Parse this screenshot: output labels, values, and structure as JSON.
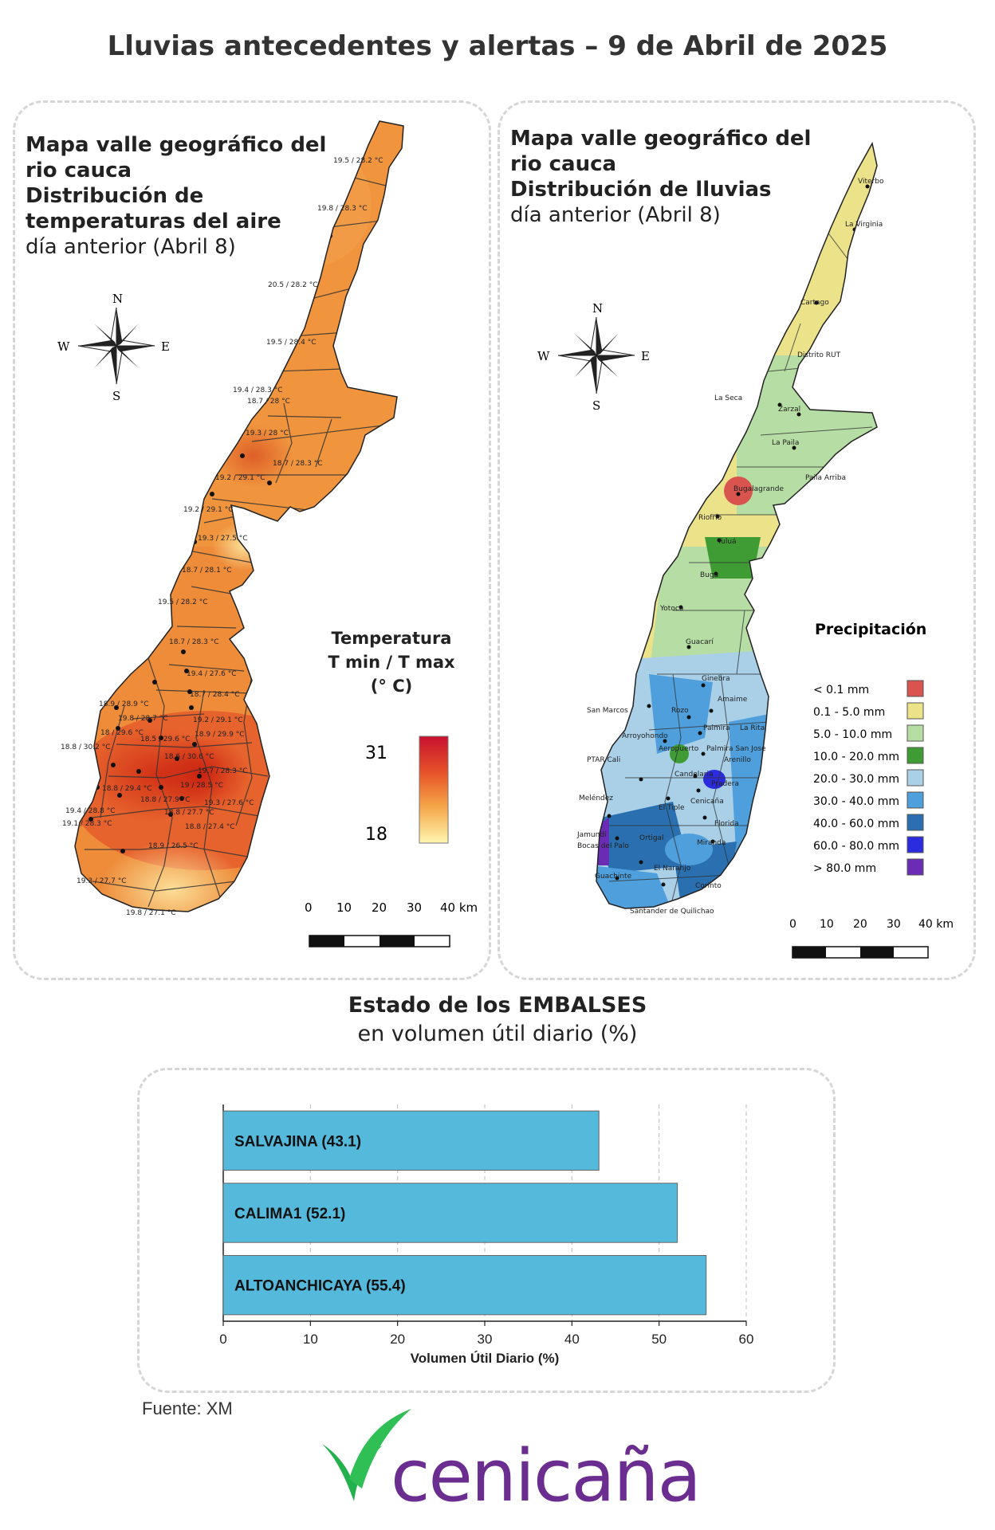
{
  "header": {
    "title": "Lluvias antecedentes y alertas – 9 de Abril de 2025"
  },
  "temp_map": {
    "title_line1": "Mapa valle geográfico del",
    "title_line2": "rio cauca",
    "title_line3": "Distribución de",
    "title_line4": "temperaturas del aire",
    "title_line5": "día anterior (Abril 8)",
    "legend_title_1": "Temperatura",
    "legend_title_2": "T min / T max",
    "legend_title_3": "(° C)",
    "legend_max": "31",
    "legend_min": "18",
    "scale_labels": [
      "0",
      "10",
      "20",
      "30",
      "40 km"
    ],
    "compass": {
      "n": "N",
      "s": "S",
      "e": "E",
      "w": "W"
    },
    "stations": [
      "19.5 / 28.2 °C",
      "19.8 / 28.3 °C",
      "20.5 / 28.2 °C",
      "19.5 / 28.4 °C",
      "19.4 / 28.3 °C",
      "18.7 / 28 °C",
      "19.3 / 28 °C",
      "18.7 / 28.3 °C",
      "19.2 / 29.1 °C",
      "19.2 / 29.1 °C",
      "19.3 / 27.5 °C",
      "18.7 / 28.1 °C",
      "19.5 / 28.2 °C",
      "18.7 / 28.3 °C",
      "19.4 / 27.6 °C",
      "18.9 / 28.9 °C",
      "18.7 / 28.4 °C",
      "19.8 / 28.7 °C",
      "19.2 / 29.1 °C",
      "18 / 29.6 °C",
      "18.9 / 29.9 °C",
      "18.8 / 30.2 °C",
      "18.5 / 29.6 °C",
      "18.6 / 30.6 °C",
      "19.7 / 28.3 °C",
      "19 / 28.5 °C",
      "18.8 / 29.4 °C",
      "18.8 / 27.9 °C",
      "19.3 / 27.6 °C",
      "19.4 / 28.8 °C",
      "18.8 / 27.7 °C",
      "19.1 / 28.3 °C",
      "18.8 / 27.4 °C",
      "18.9 / 26.5 °C",
      "19.3 / 27.7 °C",
      "19.8 / 27.1 °C"
    ]
  },
  "rain_map": {
    "title_line1": "Mapa valle geográfico del",
    "title_line2": "rio cauca",
    "title_line3": "Distribución de lluvias",
    "title_line4": "día anterior (Abril 8)",
    "legend_title": "Precipitación",
    "scale_labels": [
      "0",
      "10",
      "20",
      "30",
      "40 km"
    ],
    "compass": {
      "n": "N",
      "s": "S",
      "e": "E",
      "w": "W"
    },
    "legend": [
      {
        "label": "< 0.1 mm",
        "color": "#d9534f"
      },
      {
        "label": "0.1 - 5.0 mm",
        "color": "#ece28a"
      },
      {
        "label": "5.0 - 10.0 mm",
        "color": "#b6dea4"
      },
      {
        "label": "10.0 - 20.0 mm",
        "color": "#3f9c35"
      },
      {
        "label": "20.0 - 30.0 mm",
        "color": "#aad0e8"
      },
      {
        "label": "30.0 - 40.0 mm",
        "color": "#4f9fdc"
      },
      {
        "label": "40.0 - 60.0 mm",
        "color": "#2a6fb0"
      },
      {
        "label": "60.0 - 80.0 mm",
        "color": "#2b2be0"
      },
      {
        "label": "> 80.0 mm",
        "color": "#6a2cb5"
      }
    ],
    "stations": [
      "Viterbo",
      "La Virginia",
      "Cartago",
      "Distrito RUT",
      "La Seca",
      "Zarzal",
      "La Paila",
      "Paila Arriba",
      "Bugalagrande",
      "Riofrío",
      "Tuluá",
      "Buga",
      "Yotoco",
      "Guacarí",
      "Ginebra",
      "Amaime",
      "San Marcos",
      "Rozo",
      "Palmira",
      "La Rita",
      "Arroyohondo",
      "Aeropuerto",
      "Palmira San Jose",
      "Arenillo",
      "PTAR Cali",
      "Candelaria",
      "Pradera",
      "Meléndez",
      "El Tiple",
      "Cenicaña",
      "Florida",
      "Jamundí",
      "Bocas del Palo",
      "Ortigal",
      "Miranda",
      "Guachinte",
      "El Naranjo",
      "Corinto",
      "Santander de Quilichao"
    ]
  },
  "reservoirs": {
    "title": "Estado de los EMBALSES",
    "subtitle": "en volumen útil diario (%)",
    "source": "Fuente: XM"
  },
  "chart_data": {
    "type": "bar",
    "orientation": "horizontal",
    "categories": [
      "SALVAJINA (43.1)",
      "CALIMA1 (52.1)",
      "ALTOANCHICAYA (55.4)"
    ],
    "values": [
      43.1,
      52.1,
      55.4
    ],
    "xlabel": "Volumen Útil Diario (%)",
    "xlim": [
      0,
      60
    ],
    "xticks": [
      "0",
      "10",
      "20",
      "30",
      "40",
      "50",
      "60"
    ],
    "bar_color": "#55b9dc",
    "grid": "vertical dashed"
  },
  "logo": {
    "text": "cenicaña",
    "brand_color": "#6b2d8f",
    "accent": "#22b14c"
  }
}
